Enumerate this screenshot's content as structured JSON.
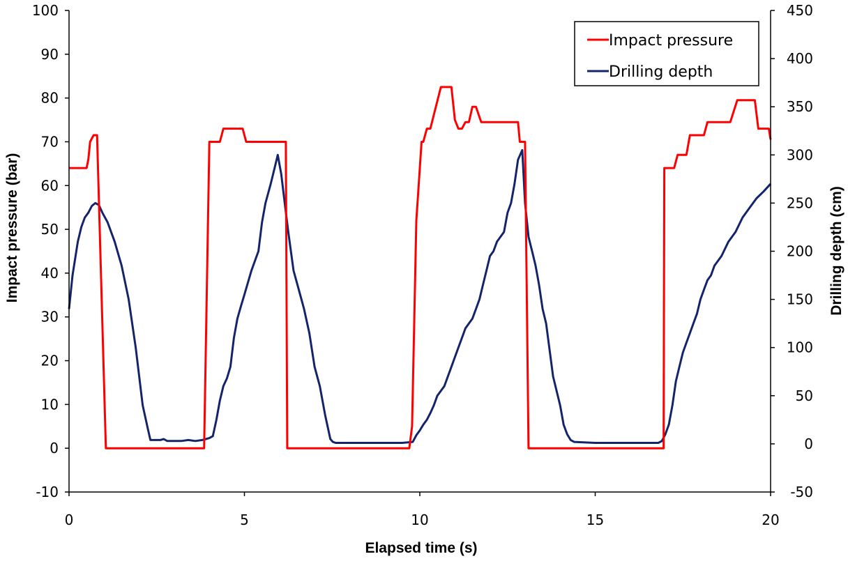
{
  "chart_data": {
    "type": "line",
    "title": "",
    "xlabel": "Elapsed time (s)",
    "ylabel_left": "Impact pressure (bar)",
    "ylabel_right": "Drilling depth (cm)",
    "xlim": [
      0,
      20
    ],
    "ylim_left": [
      -10,
      100
    ],
    "ylim_right": [
      -50,
      450
    ],
    "x_ticks": [
      "0",
      "5",
      "10",
      "15",
      "20"
    ],
    "y_left_ticks": [
      "-10",
      "0",
      "10",
      "20",
      "30",
      "40",
      "50",
      "60",
      "70",
      "80",
      "90",
      "100"
    ],
    "y_right_ticks": [
      "-50",
      "0",
      "50",
      "100",
      "150",
      "200",
      "250",
      "300",
      "350",
      "400",
      "450"
    ],
    "legend_position": "top-right",
    "grid": false,
    "series": [
      {
        "name": "Impact pressure",
        "axis": "left",
        "color": "#ff0000",
        "x": [
          0,
          0.45,
          0.5,
          0.55,
          0.6,
          0.7,
          0.8,
          1.05,
          1.06,
          3.85,
          4.0,
          4.3,
          4.4,
          4.95,
          5.05,
          5.4,
          5.5,
          5.9,
          6.0,
          6.18,
          6.22,
          6.28,
          9.7,
          9.78,
          9.9,
          10.05,
          10.1,
          10.2,
          10.3,
          10.6,
          10.62,
          10.9,
          11.0,
          11.1,
          11.2,
          11.3,
          11.4,
          11.5,
          11.6,
          11.75,
          12.0,
          12.3,
          12.8,
          12.85,
          13.0,
          13.1,
          13.12,
          16.95,
          16.97,
          17.25,
          17.35,
          17.6,
          17.7,
          17.7,
          18.1,
          18.2,
          18.2,
          18.85,
          19.05,
          19.55,
          19.65,
          19.95,
          20.0
        ],
        "values": [
          64,
          64,
          64,
          66,
          70,
          71.5,
          71.5,
          0,
          0,
          0,
          70,
          70,
          73,
          73,
          70,
          70,
          70,
          70,
          70,
          70,
          0,
          0,
          0,
          5,
          52,
          70,
          70,
          73,
          73,
          82.5,
          82.5,
          82.5,
          75,
          73,
          73,
          74.5,
          74.5,
          78,
          78,
          74.5,
          74.5,
          74.5,
          74.5,
          70,
          70,
          0,
          0,
          0,
          64,
          64,
          67,
          67,
          71.5,
          71.5,
          71.5,
          74.5,
          74.5,
          74.5,
          79.5,
          79.5,
          73,
          73,
          70.5
        ]
      },
      {
        "name": "Drilling depth",
        "axis": "right",
        "color": "#14246b",
        "x": [
          0,
          0.1,
          0.25,
          0.35,
          0.45,
          0.55,
          0.65,
          0.75,
          0.85,
          0.95,
          1.1,
          1.3,
          1.5,
          1.7,
          1.9,
          2.1,
          2.25,
          2.32,
          2.45,
          2.6,
          2.7,
          2.8,
          3.0,
          3.2,
          3.4,
          3.6,
          3.8,
          3.9,
          4.0,
          4.1,
          4.2,
          4.3,
          4.4,
          4.5,
          4.6,
          4.7,
          4.8,
          4.9,
          5.0,
          5.2,
          5.3,
          5.4,
          5.5,
          5.6,
          5.75,
          5.85,
          5.95,
          6.05,
          6.15,
          6.25,
          6.4,
          6.55,
          6.7,
          6.85,
          7.0,
          7.15,
          7.3,
          7.45,
          7.52,
          7.6,
          7.8,
          8.5,
          9.0,
          9.5,
          9.8,
          9.9,
          10.0,
          10.1,
          10.2,
          10.3,
          10.4,
          10.5,
          10.6,
          10.7,
          10.8,
          10.9,
          11.0,
          11.1,
          11.2,
          11.3,
          11.4,
          11.5,
          11.6,
          11.7,
          11.8,
          11.9,
          12.0,
          12.1,
          12.2,
          12.3,
          12.4,
          12.5,
          12.6,
          12.7,
          12.8,
          12.92,
          13.0,
          13.1,
          13.2,
          13.3,
          13.4,
          13.5,
          13.6,
          13.8,
          14.0,
          14.1,
          14.2,
          14.3,
          14.4,
          15.0,
          16.0,
          16.8,
          16.9,
          17.0,
          17.1,
          17.2,
          17.3,
          17.4,
          17.5,
          17.6,
          17.7,
          17.8,
          17.9,
          18.0,
          18.1,
          18.2,
          18.3,
          18.4,
          18.6,
          18.8,
          19.0,
          19.2,
          19.4,
          19.6,
          19.8,
          20.0
        ],
        "values": [
          140,
          175,
          210,
          225,
          235,
          240,
          247,
          250,
          248,
          240,
          230,
          210,
          185,
          150,
          100,
          40,
          15,
          4,
          4,
          4,
          5,
          3,
          3,
          3,
          4,
          3,
          4,
          5,
          6,
          8,
          25,
          45,
          60,
          68,
          80,
          110,
          130,
          143,
          155,
          180,
          190,
          200,
          230,
          250,
          270,
          285,
          300,
          280,
          250,
          220,
          180,
          160,
          140,
          115,
          80,
          60,
          30,
          5,
          2,
          1,
          1,
          1,
          1,
          1,
          2,
          9,
          14,
          20,
          25,
          32,
          40,
          50,
          55,
          60,
          70,
          80,
          90,
          100,
          110,
          120,
          125,
          130,
          140,
          150,
          165,
          180,
          195,
          200,
          210,
          215,
          220,
          240,
          250,
          270,
          295,
          305,
          250,
          215,
          200,
          185,
          165,
          140,
          125,
          70,
          40,
          20,
          10,
          4,
          2,
          1,
          1,
          1,
          3,
          10,
          20,
          40,
          65,
          80,
          95,
          105,
          115,
          125,
          135,
          150,
          160,
          170,
          175,
          185,
          195,
          210,
          220,
          235,
          245,
          255,
          262,
          270
        ]
      }
    ]
  }
}
